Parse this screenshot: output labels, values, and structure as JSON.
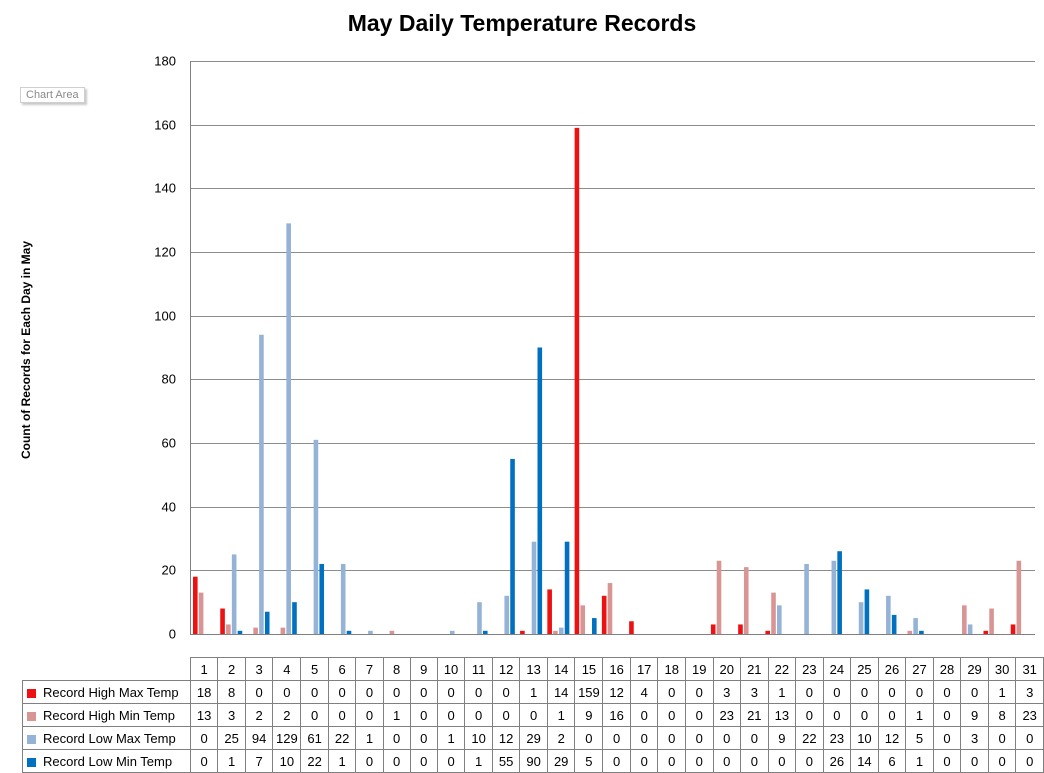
{
  "chart_data": {
    "type": "bar",
    "title": "May Daily Temperature Records",
    "ylabel": "Count  of Records for Each  Day  in May",
    "xlabel": "",
    "ylim": [
      0,
      180
    ],
    "yticks": [
      0,
      20,
      40,
      60,
      80,
      100,
      120,
      140,
      160,
      180
    ],
    "grid": true,
    "legend": "data-table",
    "categories": [
      "1",
      "2",
      "3",
      "4",
      "5",
      "6",
      "7",
      "8",
      "9",
      "10",
      "11",
      "12",
      "13",
      "14",
      "15",
      "16",
      "17",
      "18",
      "19",
      "20",
      "21",
      "22",
      "23",
      "24",
      "25",
      "26",
      "27",
      "28",
      "29",
      "30",
      "31"
    ],
    "series": [
      {
        "name": "Record High Max Temp",
        "color": "#ee1111",
        "values": [
          18,
          8,
          0,
          0,
          0,
          0,
          0,
          0,
          0,
          0,
          0,
          0,
          1,
          14,
          159,
          12,
          4,
          0,
          0,
          3,
          3,
          1,
          0,
          0,
          0,
          0,
          0,
          0,
          0,
          1,
          3
        ]
      },
      {
        "name": "Record High Min Temp",
        "color": "#d99594",
        "values": [
          13,
          3,
          2,
          2,
          0,
          0,
          0,
          1,
          0,
          0,
          0,
          0,
          0,
          1,
          9,
          16,
          0,
          0,
          0,
          23,
          21,
          13,
          0,
          0,
          0,
          0,
          1,
          0,
          9,
          8,
          23
        ]
      },
      {
        "name": "Record Low Max Temp",
        "color": "#95b3d7",
        "values": [
          0,
          25,
          94,
          129,
          61,
          22,
          1,
          0,
          0,
          1,
          10,
          12,
          29,
          2,
          0,
          0,
          0,
          0,
          0,
          0,
          0,
          9,
          22,
          23,
          10,
          12,
          5,
          0,
          3,
          0,
          0
        ]
      },
      {
        "name": "Record Low Min Temp",
        "color": "#0070c0",
        "values": [
          0,
          1,
          7,
          10,
          22,
          1,
          0,
          0,
          0,
          0,
          1,
          55,
          90,
          29,
          5,
          0,
          0,
          0,
          0,
          0,
          0,
          0,
          0,
          26,
          14,
          6,
          1,
          0,
          0,
          0,
          0
        ]
      }
    ]
  },
  "ui": {
    "tooltip": "Chart Area"
  }
}
